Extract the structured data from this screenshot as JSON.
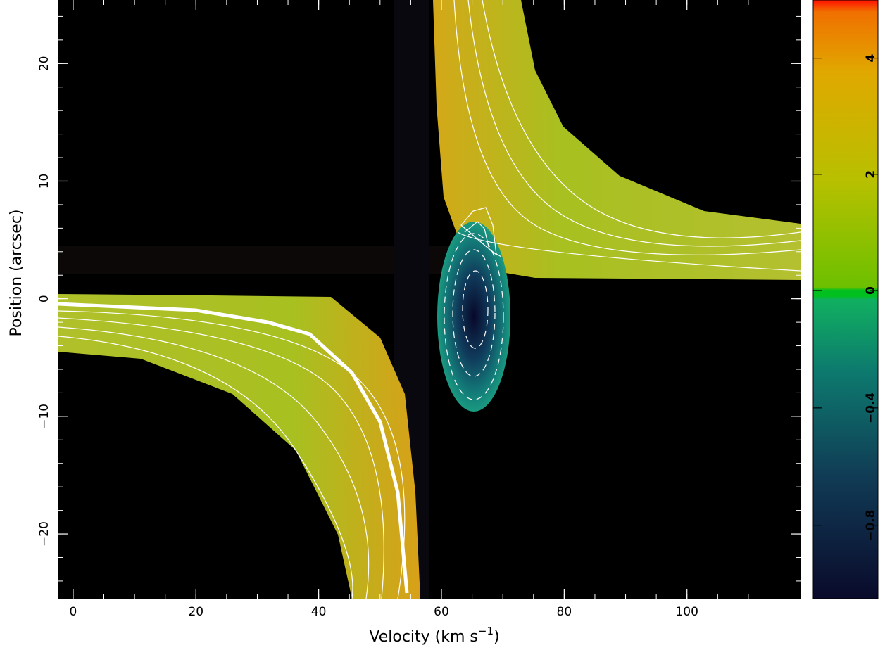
{
  "chart_data": {
    "type": "heatmap",
    "x_label": [
      "Velocity (km s",
      "−1",
      ")"
    ],
    "y_label": "Position (arcsec)",
    "xlim": [
      -2.4,
      118.5
    ],
    "ylim": [
      -25.5,
      25.4
    ],
    "xticks": [
      0,
      20,
      40,
      60,
      80,
      100
    ],
    "yticks": [
      {
        "value": -20,
        "label": "−20"
      },
      {
        "value": -10,
        "label": "−10"
      },
      0,
      10,
      20
    ],
    "colorbar": {
      "clim": [
        -1.05,
        5
      ],
      "ticks": [
        {
          "value": -0.8,
          "label": "−0.8"
        },
        {
          "value": -0.4,
          "label": "−0.4"
        },
        0,
        2,
        4
      ]
    }
  }
}
